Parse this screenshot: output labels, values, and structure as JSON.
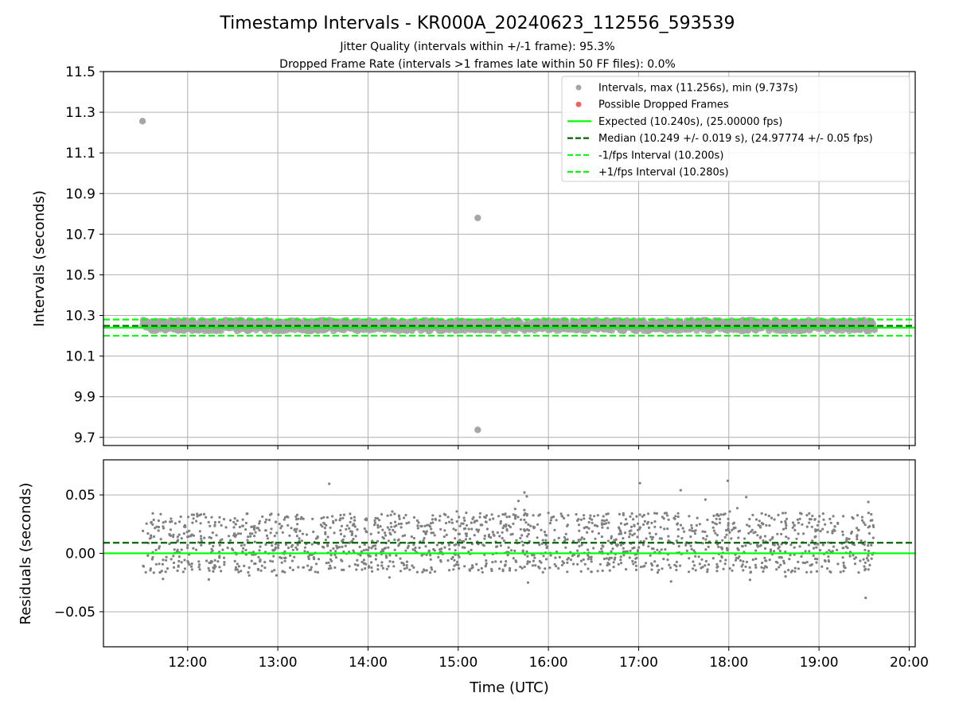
{
  "figure": {
    "title": "Timestamp Intervals - KR000A_20240623_112556_593539",
    "subtitle_1": "Jitter Quality (intervals within +/-1 frame): 95.3%",
    "subtitle_2": "Dropped Frame Rate (intervals >1 frames late within 50 FF files): 0.0%"
  },
  "colors": {
    "interval_points": "#a6a6a6",
    "residual_points": "#808080",
    "dropped_frames": "#f0645f",
    "expected": "#00ff00",
    "median": "#006400",
    "fps_interval": "#00ff00"
  },
  "chart_data": [
    {
      "type": "scatter",
      "panel": "top",
      "xlabel": "",
      "ylabel": "Intervals (seconds)",
      "xlim": [
        "11:04",
        "20:04"
      ],
      "ylim": [
        9.66,
        11.5
      ],
      "y_ticks": [
        "9.7",
        "9.9",
        "10.1",
        "10.3",
        "10.5",
        "10.7",
        "10.9",
        "11.1",
        "11.3",
        "11.5"
      ],
      "grid": true,
      "legend_position": "top-right",
      "series": [
        {
          "name": "Intervals, max (11.256s), min (9.737s)",
          "kind": "points",
          "color": "#a6a6a6",
          "x_range": [
            "11:30",
            "19:37"
          ],
          "y_center": 10.25,
          "y_spread": 0.03,
          "outliers": [
            {
              "x": "11:30",
              "y": 11.256
            },
            {
              "x": "15:13",
              "y": 10.78
            },
            {
              "x": "15:13",
              "y": 9.737
            }
          ]
        },
        {
          "name": "Possible Dropped Frames",
          "kind": "points",
          "color": "#f0645f",
          "values": []
        },
        {
          "name": "Expected (10.240s), (25.00000 fps)",
          "kind": "hline",
          "y": 10.24,
          "style": "solid",
          "color": "#00ff00"
        },
        {
          "name": "Median (10.249 +/- 0.019 s), (24.97774 +/- 0.05 fps)",
          "kind": "hline",
          "y": 10.249,
          "style": "dashed",
          "color": "#006400"
        },
        {
          "name": "-1/fps Interval (10.200s)",
          "kind": "hline",
          "y": 10.2,
          "style": "dashed",
          "color": "#00ff00"
        },
        {
          "name": "+1/fps Interval (10.280s)",
          "kind": "hline",
          "y": 10.28,
          "style": "dashed",
          "color": "#00ff00"
        }
      ]
    },
    {
      "type": "scatter",
      "panel": "bottom",
      "xlabel": "Time (UTC)",
      "ylabel": "Residuals (seconds)",
      "xlim": [
        "11:04",
        "20:04"
      ],
      "ylim": [
        -0.08,
        0.08
      ],
      "x_ticks": [
        "12:00",
        "13:00",
        "14:00",
        "15:00",
        "16:00",
        "17:00",
        "18:00",
        "19:00",
        "20:00"
      ],
      "y_ticks": [
        "−0.05",
        "0.00",
        "0.05"
      ],
      "grid": true,
      "series": [
        {
          "kind": "points",
          "color": "#808080",
          "x_range": [
            "11:30",
            "19:37"
          ],
          "y_center": 0.009,
          "y_spread": 0.019,
          "y_min": -0.043,
          "y_max": 0.062
        },
        {
          "kind": "hline",
          "y": 0.0,
          "style": "solid",
          "color": "#00ff00"
        },
        {
          "kind": "hline",
          "y": 0.009,
          "style": "dashed",
          "color": "#006400"
        }
      ]
    }
  ]
}
